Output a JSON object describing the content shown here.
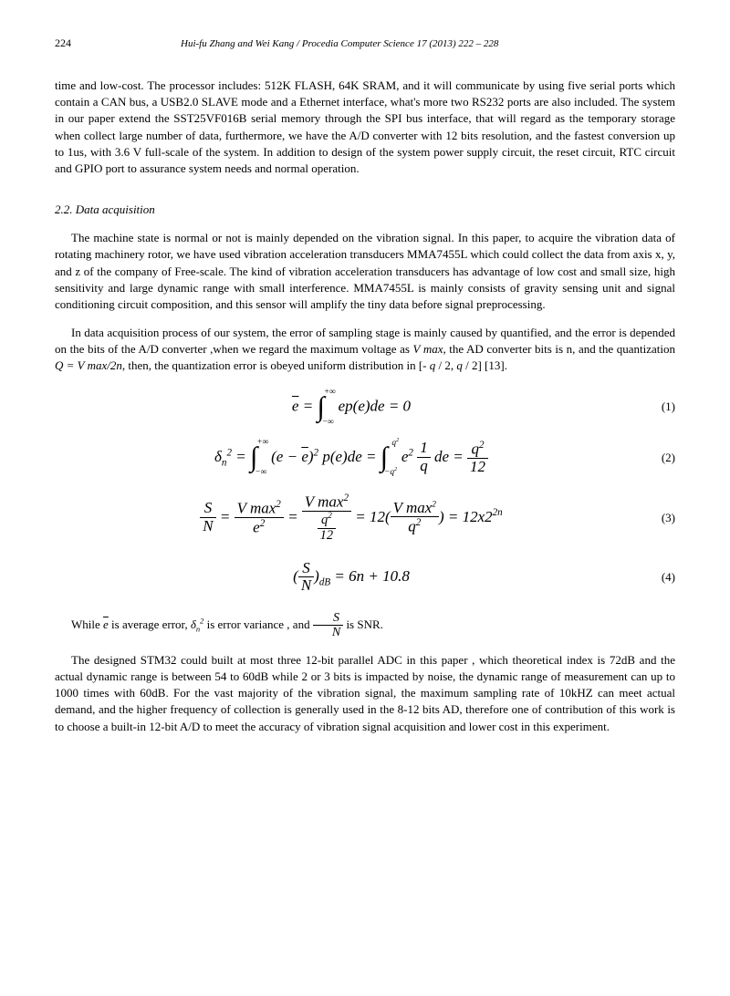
{
  "header": {
    "page_number": "224",
    "running_title": "Hui-fu Zhang and Wei Kang / Procedia Computer Science 17 (2013) 222 – 228"
  },
  "paragraphs": {
    "p1": "time and low-cost. The processor includes: 512K FLASH, 64K SRAM, and it will communicate by using five serial ports which contain a CAN bus, a USB2.0 SLAVE mode and a Ethernet interface, what's more  two RS232 ports are also included. The system in our paper extend the SST25VF016B serial memory through the SPI bus interface, that will regard as the temporary storage when collect large number of data, furthermore, we have the A/D converter with 12 bits resolution, and the fastest conversion up to 1us, with 3.6 V full-scale of the system. In addition to design of the system power supply circuit, the reset circuit, RTC circuit and GPIO port to assurance system needs and normal operation.",
    "p2": "The machine state is normal or not is mainly depended on the vibration signal. In this paper, to acquire the vibration data of rotating machinery rotor, we have used vibration acceleration transducers MMA7455L which could collect the data from axis x, y, and z of the company of Free-scale. The kind of vibration acceleration transducers has advantage of low cost and small size, high sensitivity and large dynamic range with small interference. MMA7455L is mainly consists of gravity sensing unit and signal conditioning circuit composition, and this sensor will amplify the tiny data before signal preprocessing.",
    "p3_a": "In data acquisition process of our system, the error of sampling stage is mainly caused by  quantified, and the error is depended on the bits of the A/D converter ,when we regard the maximum voltage as ",
    "p3_b": ", the AD converter bits is n, and the quantization ",
    "p3_c": ", then, the quantization error is obeyed uniform distribution in [- ",
    "p3_d": " / 2, ",
    "p3_e": "  / 2] [13].",
    "p4_a": "While ",
    "p4_b": " is average error, ",
    "p4_c": " is error variance , and ",
    "p4_d": " is SNR.",
    "p5": "The designed STM32 could built at most three 12-bit parallel ADC in this paper , which  theoretical index is 72dB and the actual dynamic range is between 54 to 60dB while 2 or 3 bits is impacted by noise, the dynamic range of measurement can up to 1000 times with 60dB. For the vast majority of the vibration signal, the maximum sampling rate of 10kHZ can meet actual demand, and the higher frequency of collection is generally used in the 8-12 bits AD, therefore one of contribution of this work is to choose a built-in 12-bit A/D to meet the accuracy of vibration signal acquisition and lower cost in this experiment."
  },
  "section": {
    "heading": "2.2. Data acquisition"
  },
  "math": {
    "vmax": "V max",
    "q_eq_vmax": "Q = V max/2n",
    "q": "q",
    "e_bar": "e",
    "delta_n_sq": "δ",
    "s_over_n": "S",
    "s_over_n_den": "N"
  },
  "equations": {
    "eq1_num": "(1)",
    "eq2_num": "(2)",
    "eq3_num": "(3)",
    "eq4_num": "(4)"
  }
}
